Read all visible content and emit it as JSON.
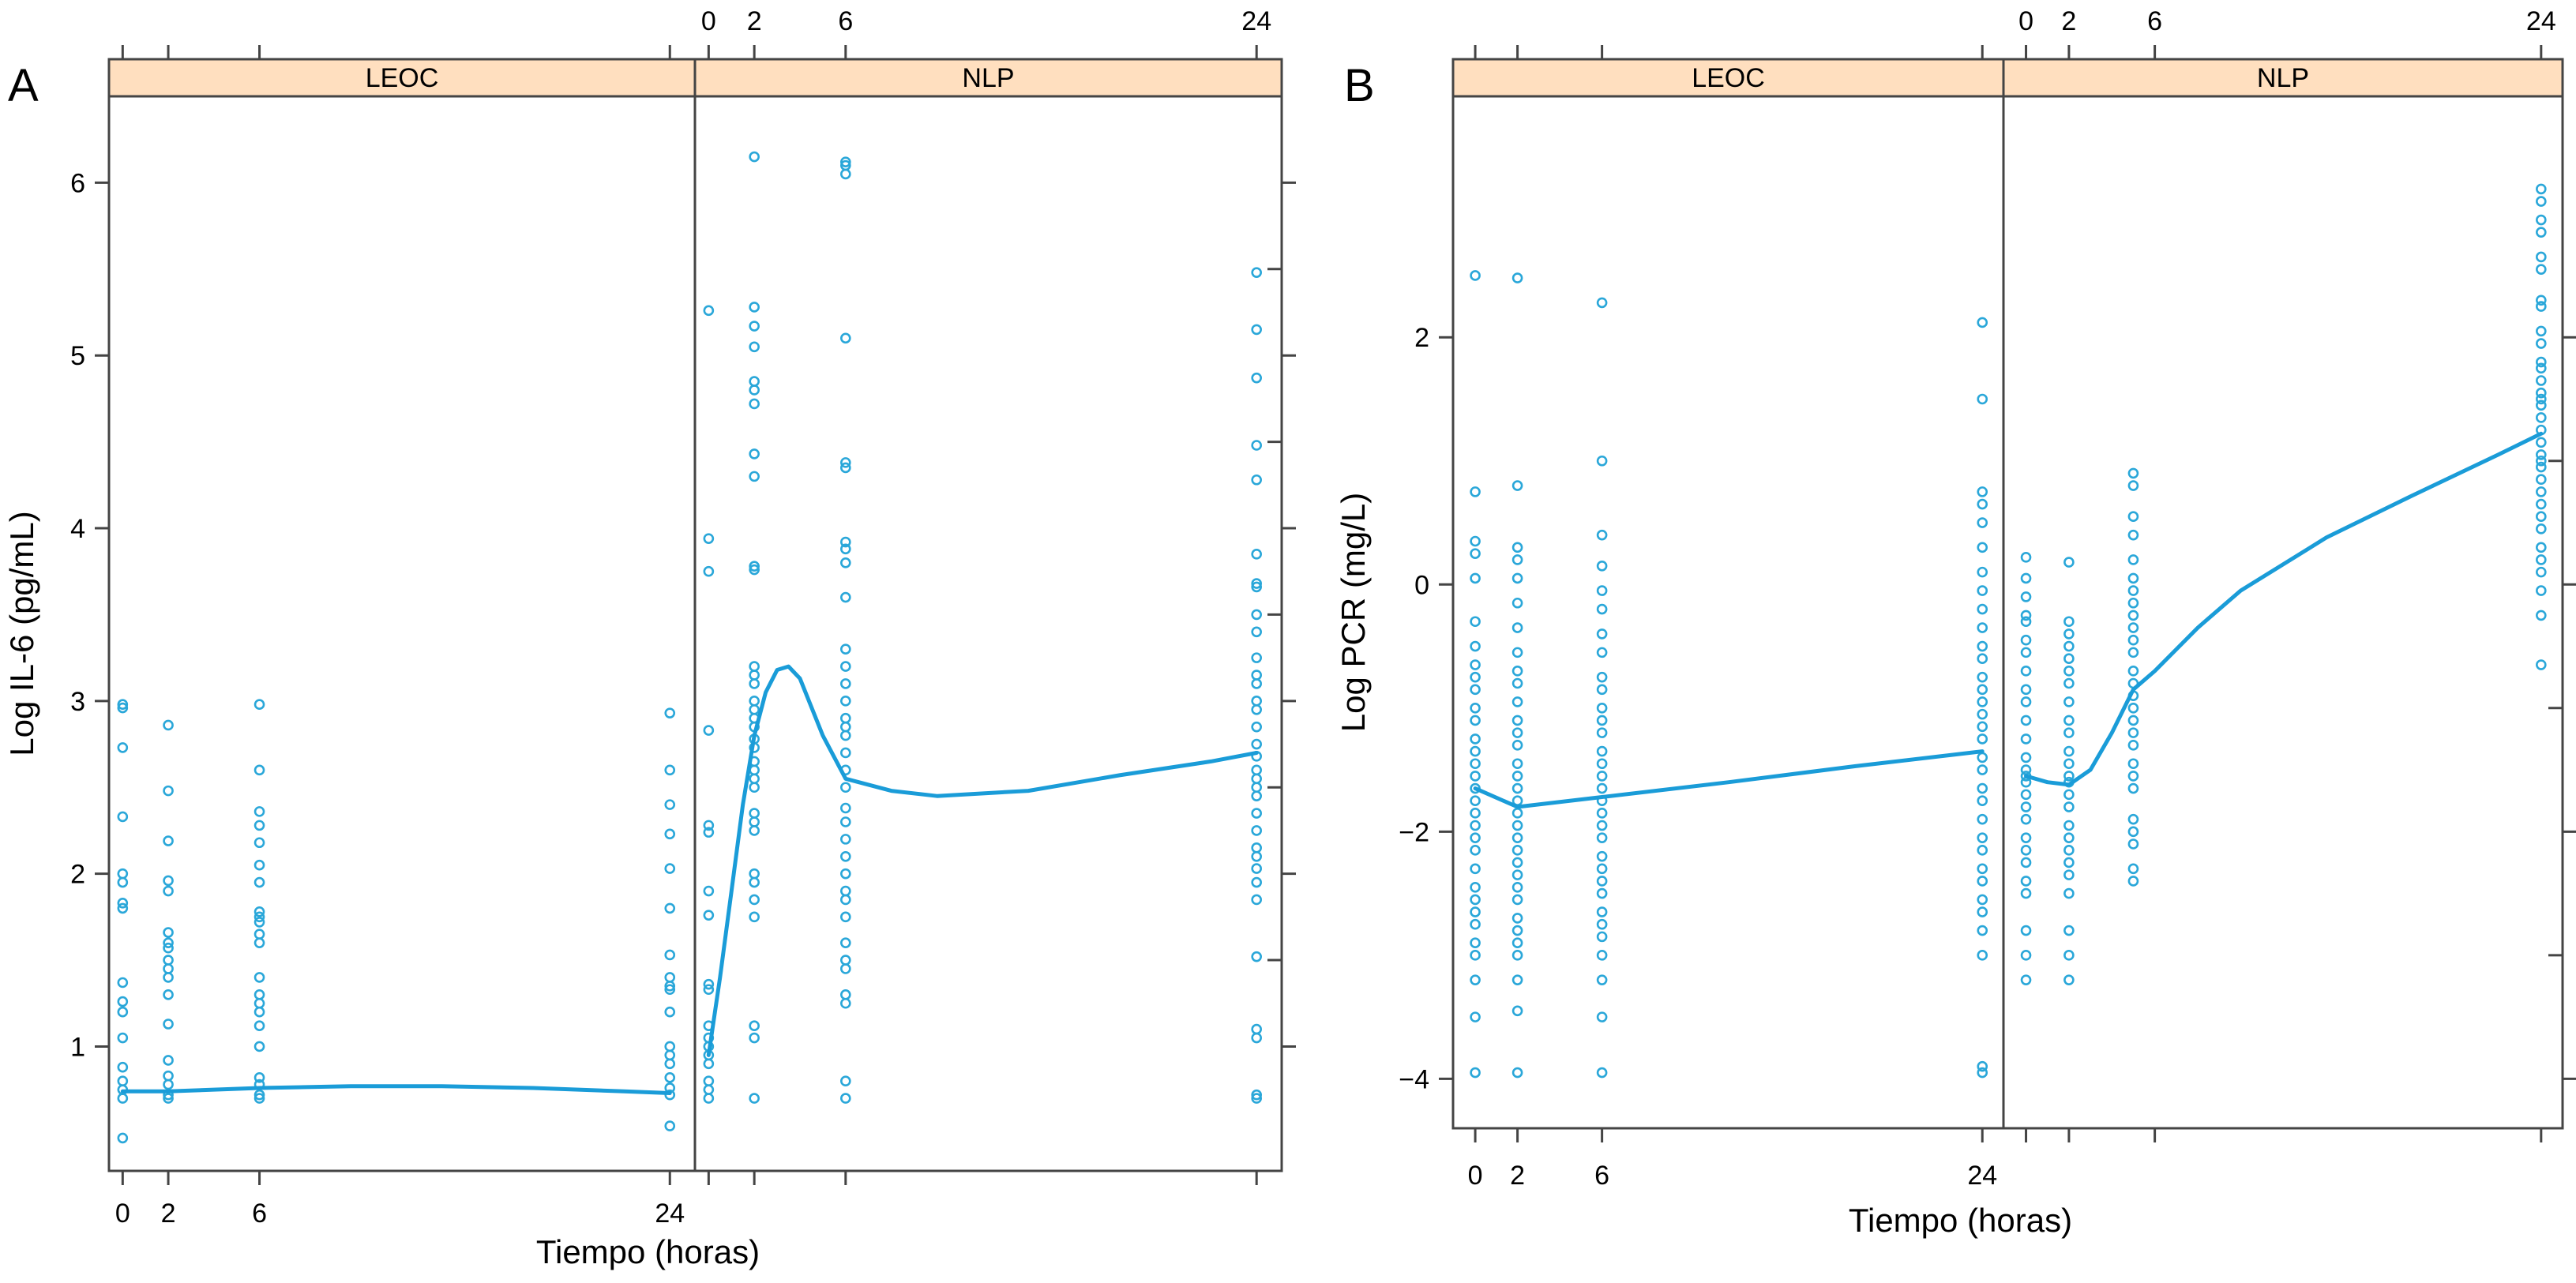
{
  "colors": {
    "points": "#2aa7d9",
    "line": "#1a9cd8",
    "strip": "#ffdfbf",
    "frame": "#444444"
  },
  "chart_data": [
    {
      "type": "scatter",
      "panel_letter": "A",
      "ylabel": "Log IL-6 (pg/mL)",
      "xlabel": "Tiempo (horas)",
      "xlim": [
        -0.6,
        25.1
      ],
      "ylim": [
        0.28,
        6.5
      ],
      "x_ticks": [
        0,
        2,
        6,
        24
      ],
      "y_ticks": [
        1,
        2,
        3,
        4,
        5,
        6
      ],
      "y_tick_labels": [
        "1",
        "2",
        "3",
        "4",
        "5",
        "6"
      ],
      "panels": [
        {
          "label": "LEOC",
          "points": [
            {
              "x": 0,
              "y": [
                2.98,
                2.96,
                2.73,
                2.33,
                2.0,
                1.95,
                1.83,
                1.8,
                1.37,
                1.26,
                1.2,
                1.05,
                0.88,
                0.8,
                0.75,
                0.7,
                0.47
              ]
            },
            {
              "x": 2,
              "y": [
                2.86,
                2.48,
                2.19,
                1.96,
                1.9,
                1.66,
                1.6,
                1.57,
                1.5,
                1.45,
                1.4,
                1.3,
                1.13,
                0.92,
                0.83,
                0.78,
                0.72,
                0.7
              ]
            },
            {
              "x": 6,
              "y": [
                2.98,
                2.6,
                2.36,
                2.28,
                2.18,
                2.05,
                1.95,
                1.78,
                1.75,
                1.72,
                1.65,
                1.6,
                1.4,
                1.3,
                1.25,
                1.2,
                1.12,
                1.0,
                0.82,
                0.78,
                0.72,
                0.7
              ]
            },
            {
              "x": 24,
              "y": [
                2.93,
                2.6,
                2.4,
                2.23,
                2.03,
                1.8,
                1.53,
                1.4,
                1.35,
                1.33,
                1.2,
                1.0,
                0.95,
                0.9,
                0.82,
                0.76,
                0.72,
                0.54
              ]
            }
          ],
          "smooth": {
            "x": [
              0,
              2,
              6,
              10,
              14,
              18,
              22,
              24
            ],
            "y": [
              0.74,
              0.74,
              0.76,
              0.77,
              0.77,
              0.76,
              0.74,
              0.73
            ]
          }
        },
        {
          "label": "NLP",
          "points": [
            {
              "x": 0,
              "y": [
                5.26,
                3.94,
                3.75,
                2.83,
                2.28,
                2.24,
                1.9,
                1.76,
                1.36,
                1.33,
                1.12,
                1.05,
                1.0,
                0.95,
                0.9,
                0.8,
                0.75,
                0.7
              ]
            },
            {
              "x": 2,
              "y": [
                6.15,
                5.28,
                5.17,
                5.05,
                4.85,
                4.8,
                4.72,
                4.43,
                4.3,
                3.78,
                3.76,
                3.2,
                3.15,
                3.1,
                3.0,
                2.95,
                2.9,
                2.85,
                2.78,
                2.73,
                2.65,
                2.6,
                2.55,
                2.5,
                2.35,
                2.3,
                2.25,
                2.0,
                1.95,
                1.85,
                1.75,
                1.12,
                1.05,
                0.7
              ]
            },
            {
              "x": 6,
              "y": [
                6.12,
                6.1,
                6.05,
                5.1,
                4.38,
                4.35,
                3.92,
                3.88,
                3.8,
                3.6,
                3.3,
                3.2,
                3.1,
                3.0,
                2.9,
                2.85,
                2.8,
                2.7,
                2.6,
                2.5,
                2.38,
                2.3,
                2.2,
                2.1,
                2.0,
                1.9,
                1.85,
                1.75,
                1.6,
                1.5,
                1.45,
                1.3,
                1.25,
                0.8,
                0.7
              ]
            },
            {
              "x": 24,
              "y": [
                5.48,
                5.15,
                4.87,
                4.48,
                4.28,
                3.85,
                3.68,
                3.66,
                3.5,
                3.4,
                3.25,
                3.15,
                3.1,
                3.0,
                2.95,
                2.85,
                2.75,
                2.68,
                2.6,
                2.55,
                2.5,
                2.45,
                2.35,
                2.25,
                2.15,
                2.1,
                2.03,
                1.95,
                1.85,
                1.52,
                1.1,
                1.05,
                0.72,
                0.7
              ]
            }
          ],
          "smooth": {
            "x": [
              0,
              0.5,
              1,
              1.5,
              2,
              2.5,
              3,
              3.5,
              4,
              5,
              6,
              8,
              10,
              14,
              18,
              22,
              24
            ],
            "y": [
              0.95,
              1.4,
              1.9,
              2.4,
              2.8,
              3.05,
              3.18,
              3.2,
              3.13,
              2.8,
              2.55,
              2.48,
              2.45,
              2.48,
              2.57,
              2.65,
              2.7
            ]
          }
        }
      ]
    },
    {
      "type": "scatter",
      "panel_letter": "B",
      "ylabel": "Log PCR (mg/L)",
      "xlabel": "Tiempo (horas)",
      "xlim": [
        -1.05,
        25.0
      ],
      "ylim": [
        -4.4,
        3.95
      ],
      "x_ticks": [
        0,
        2,
        6,
        24
      ],
      "y_ticks": [
        -4,
        -2,
        0,
        2
      ],
      "y_tick_labels": [
        "−4",
        "−2",
        "0",
        "2"
      ],
      "panels": [
        {
          "label": "LEOC",
          "points": [
            {
              "x": 0,
              "y": [
                2.5,
                0.75,
                0.35,
                0.25,
                0.05,
                -0.3,
                -0.5,
                -0.65,
                -0.75,
                -0.85,
                -1.0,
                -1.1,
                -1.25,
                -1.35,
                -1.45,
                -1.55,
                -1.65,
                -1.75,
                -1.85,
                -1.95,
                -2.05,
                -2.15,
                -2.3,
                -2.45,
                -2.55,
                -2.65,
                -2.75,
                -2.9,
                -3.0,
                -3.2,
                -3.5,
                -3.95
              ]
            },
            {
              "x": 2,
              "y": [
                2.48,
                0.8,
                0.3,
                0.2,
                0.05,
                -0.15,
                -0.35,
                -0.55,
                -0.7,
                -0.8,
                -0.95,
                -1.1,
                -1.2,
                -1.3,
                -1.45,
                -1.55,
                -1.65,
                -1.75,
                -1.85,
                -1.95,
                -2.05,
                -2.15,
                -2.25,
                -2.35,
                -2.45,
                -2.55,
                -2.7,
                -2.8,
                -2.9,
                -3.0,
                -3.2,
                -3.45,
                -3.95
              ]
            },
            {
              "x": 6,
              "y": [
                2.28,
                1.0,
                0.4,
                0.15,
                -0.05,
                -0.2,
                -0.4,
                -0.55,
                -0.75,
                -0.85,
                -1.0,
                -1.1,
                -1.2,
                -1.35,
                -1.45,
                -1.55,
                -1.65,
                -1.75,
                -1.85,
                -1.95,
                -2.05,
                -2.2,
                -2.3,
                -2.4,
                -2.5,
                -2.65,
                -2.75,
                -2.85,
                -3.0,
                -3.2,
                -3.5,
                -3.95
              ]
            },
            {
              "x": 24,
              "y": [
                2.12,
                1.5,
                0.75,
                0.65,
                0.5,
                0.3,
                0.1,
                -0.05,
                -0.2,
                -0.35,
                -0.5,
                -0.6,
                -0.75,
                -0.85,
                -0.95,
                -1.05,
                -1.15,
                -1.25,
                -1.4,
                -1.5,
                -1.65,
                -1.75,
                -1.9,
                -2.05,
                -2.15,
                -2.3,
                -2.4,
                -2.55,
                -2.65,
                -2.8,
                -3.0,
                -3.9,
                -3.95
              ]
            }
          ],
          "smooth": {
            "x": [
              0,
              2,
              6,
              12,
              18,
              24
            ],
            "y": [
              -1.65,
              -1.8,
              -1.72,
              -1.6,
              -1.47,
              -1.35
            ]
          }
        },
        {
          "label": "NLP",
          "points": [
            {
              "x": 0,
              "y": [
                0.22,
                0.05,
                -0.1,
                -0.25,
                -0.3,
                -0.45,
                -0.55,
                -0.7,
                -0.85,
                -0.95,
                -1.1,
                -1.25,
                -1.4,
                -1.5,
                -1.55,
                -1.6,
                -1.7,
                -1.8,
                -1.9,
                -2.05,
                -2.15,
                -2.25,
                -2.4,
                -2.5,
                -2.8,
                -3.0,
                -3.2
              ]
            },
            {
              "x": 2,
              "y": [
                0.18,
                -0.3,
                -0.4,
                -0.5,
                -0.6,
                -0.7,
                -0.8,
                -0.95,
                -1.1,
                -1.2,
                -1.35,
                -1.45,
                -1.55,
                -1.6,
                -1.7,
                -1.8,
                -1.95,
                -2.05,
                -2.15,
                -2.25,
                -2.35,
                -2.5,
                -2.8,
                -3.0,
                -3.2
              ]
            },
            {
              "x": 5,
              "y": [
                0.9,
                0.8,
                0.55,
                0.4,
                0.2,
                0.05,
                -0.05,
                -0.15,
                -0.25,
                -0.35,
                -0.45,
                -0.55,
                -0.7,
                -0.8,
                -0.9,
                -1.0,
                -1.1,
                -1.2,
                -1.3,
                -1.45,
                -1.55,
                -1.65,
                -1.9,
                -2.0,
                -2.1,
                -2.3,
                -2.4
              ]
            },
            {
              "x": 24,
              "y": [
                3.2,
                3.1,
                2.95,
                2.85,
                2.65,
                2.55,
                2.3,
                2.25,
                2.05,
                1.95,
                1.8,
                1.75,
                1.65,
                1.55,
                1.5,
                1.45,
                1.35,
                1.25,
                1.15,
                1.05,
                1.0,
                0.95,
                0.85,
                0.75,
                0.65,
                0.55,
                0.45,
                0.3,
                0.2,
                0.1,
                -0.05,
                -0.25,
                -0.65
              ]
            }
          ],
          "smooth": {
            "x": [
              0,
              1,
              2,
              3,
              4,
              5,
              6,
              8,
              10,
              14,
              18,
              22,
              24
            ],
            "y": [
              -1.55,
              -1.6,
              -1.62,
              -1.5,
              -1.2,
              -0.85,
              -0.7,
              -0.35,
              -0.05,
              0.38,
              0.72,
              1.05,
              1.22
            ]
          }
        }
      ]
    }
  ]
}
